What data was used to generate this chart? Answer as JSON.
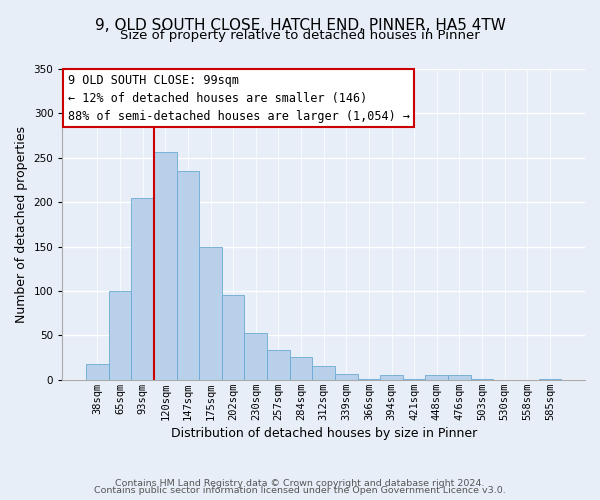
{
  "title": "9, OLD SOUTH CLOSE, HATCH END, PINNER, HA5 4TW",
  "subtitle": "Size of property relative to detached houses in Pinner",
  "xlabel": "Distribution of detached houses by size in Pinner",
  "ylabel": "Number of detached properties",
  "bar_labels": [
    "38sqm",
    "65sqm",
    "93sqm",
    "120sqm",
    "147sqm",
    "175sqm",
    "202sqm",
    "230sqm",
    "257sqm",
    "284sqm",
    "312sqm",
    "339sqm",
    "366sqm",
    "394sqm",
    "421sqm",
    "448sqm",
    "476sqm",
    "503sqm",
    "530sqm",
    "558sqm",
    "585sqm"
  ],
  "bar_values": [
    18,
    100,
    205,
    257,
    235,
    150,
    96,
    53,
    33,
    26,
    15,
    7,
    1,
    5,
    1,
    5,
    5,
    1,
    0,
    0,
    1
  ],
  "bar_color": "#b8d0ea",
  "bar_edge_color": "#6aaad4",
  "ylim": [
    0,
    350
  ],
  "yticks": [
    0,
    50,
    100,
    150,
    200,
    250,
    300,
    350
  ],
  "vline_x_idx": 2,
  "vline_color": "#cc0000",
  "annotation_title": "9 OLD SOUTH CLOSE: 99sqm",
  "annotation_line1": "← 12% of detached houses are smaller (146)",
  "annotation_line2": "88% of semi-detached houses are larger (1,054) →",
  "annotation_box_facecolor": "#ffffff",
  "annotation_box_edgecolor": "#cc0000",
  "footer_line1": "Contains HM Land Registry data © Crown copyright and database right 2024.",
  "footer_line2": "Contains public sector information licensed under the Open Government Licence v3.0.",
  "background_color": "#e8eef8",
  "grid_color": "#ffffff",
  "title_fontsize": 11,
  "subtitle_fontsize": 9.5,
  "axis_label_fontsize": 9,
  "tick_fontsize": 7.5,
  "annotation_fontsize": 8.5,
  "footer_fontsize": 6.8
}
